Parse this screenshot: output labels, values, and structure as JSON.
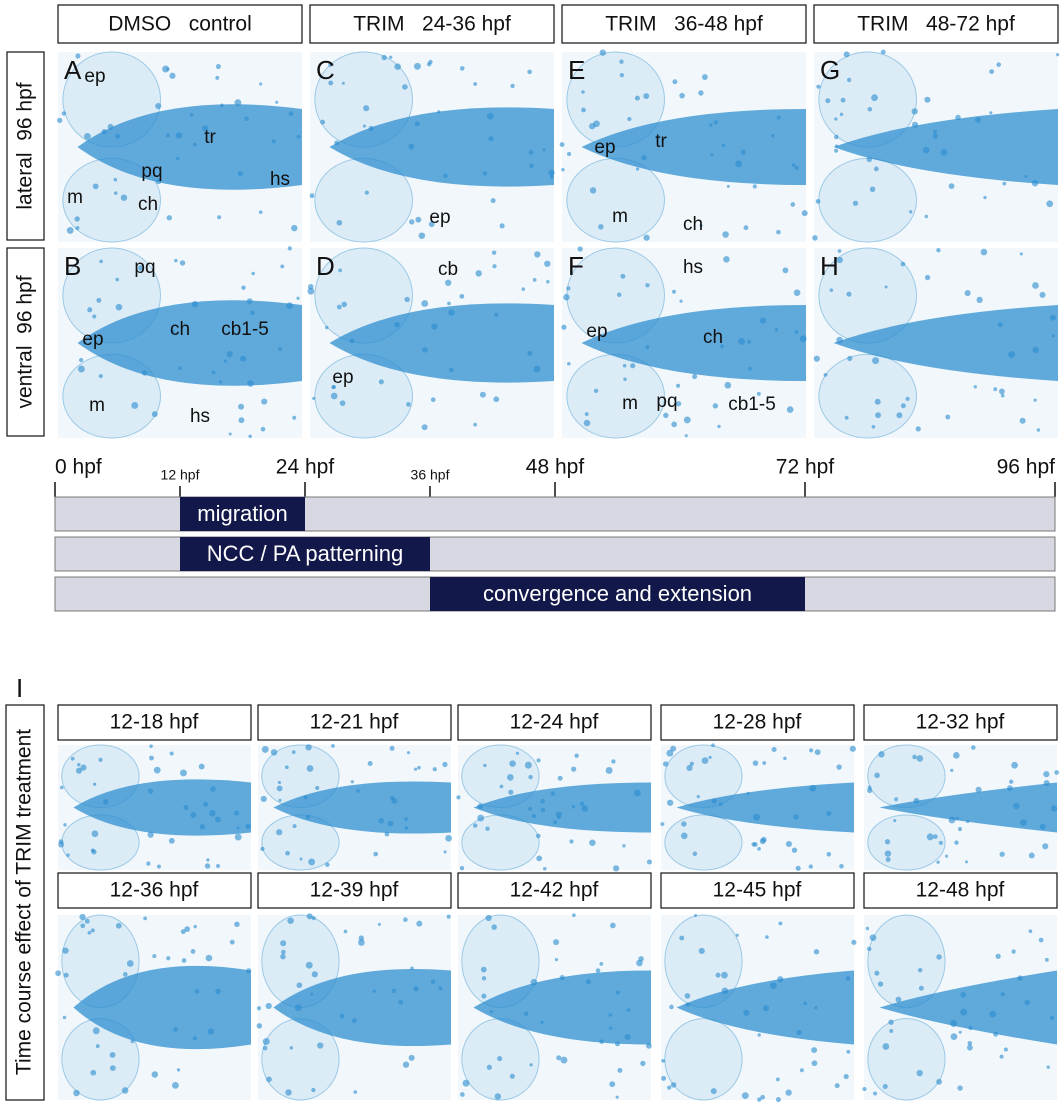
{
  "top_figure": {
    "column_headers": [
      "DMSO   control",
      "TRIM   24-36 hpf",
      "TRIM   36-48 hpf",
      "TRIM   48-72 hpf"
    ],
    "row_labels": [
      "lateral  96 hpf",
      "ventral  96 hpf"
    ],
    "panels": [
      {
        "letter": "A",
        "annotations": [
          {
            "text": "ep",
            "color": "#111111"
          },
          {
            "text": "tr",
            "color": "#111111"
          },
          {
            "text": "pq",
            "color": "#111111"
          },
          {
            "text": "hs",
            "color": "#111111"
          },
          {
            "text": "m",
            "color": "#111111"
          },
          {
            "text": "ch",
            "color": "#111111"
          }
        ]
      },
      {
        "letter": "C",
        "annotations": [
          {
            "text": "ep",
            "color": "#e8251f"
          }
        ]
      },
      {
        "letter": "E",
        "annotations": [
          {
            "text": "ep",
            "color": "#111111"
          },
          {
            "text": "tr",
            "color": "#111111"
          },
          {
            "text": "m",
            "color": "#111111"
          },
          {
            "text": "ch",
            "color": "#111111"
          }
        ]
      },
      {
        "letter": "G",
        "annotations": []
      },
      {
        "letter": "B",
        "annotations": [
          {
            "text": "pq",
            "color": "#111111"
          },
          {
            "text": "ep",
            "color": "#e8251f"
          },
          {
            "text": "ch",
            "color": "#111111"
          },
          {
            "text": "cb1-5",
            "color": "#111111"
          },
          {
            "text": "m",
            "color": "#111111"
          },
          {
            "text": "hs",
            "color": "#111111"
          }
        ]
      },
      {
        "letter": "D",
        "annotations": [
          {
            "text": "cb",
            "color": "#111111"
          },
          {
            "text": "ep",
            "color": "#e8251f"
          }
        ]
      },
      {
        "letter": "F",
        "annotations": [
          {
            "text": "hs",
            "color": "#111111"
          },
          {
            "text": "ep",
            "color": "#e8251f"
          },
          {
            "text": "ch",
            "color": "#111111"
          },
          {
            "text": "m",
            "color": "#111111"
          },
          {
            "text": "pq",
            "color": "#111111"
          },
          {
            "text": "cb1-5",
            "color": "#111111"
          }
        ]
      },
      {
        "letter": "H",
        "annotations": []
      }
    ]
  },
  "timeline": {
    "xlim": [
      0,
      96
    ],
    "major_ticks": [
      {
        "value": 0,
        "label": "0 hpf"
      },
      {
        "value": 24,
        "label": "24 hpf"
      },
      {
        "value": 48,
        "label": "48 hpf"
      },
      {
        "value": 72,
        "label": "72 hpf"
      },
      {
        "value": 96,
        "label": "96 hpf"
      }
    ],
    "minor_ticks": [
      {
        "value": 12,
        "label": "12 hpf"
      },
      {
        "value": 36,
        "label": "36 hpf"
      }
    ],
    "phases": [
      {
        "label": "migration",
        "start": 12,
        "end": 24
      },
      {
        "label": "NCC / PA patterning",
        "start": 12,
        "end": 36
      },
      {
        "label": "convergence and extension",
        "start": 36,
        "end": 72
      }
    ],
    "bar_color": "#13184a",
    "track_color": "#d8d8e2"
  },
  "time_course": {
    "letter": "I",
    "side_label": "Time course effect of TRIM treatment",
    "conditions": [
      "12-18 hpf",
      "12-21 hpf",
      "12-24 hpf",
      "12-28 hpf",
      "12-32 hpf",
      "12-36 hpf",
      "12-39 hpf",
      "12-42 hpf",
      "12-45 hpf",
      "12-48 hpf"
    ]
  }
}
